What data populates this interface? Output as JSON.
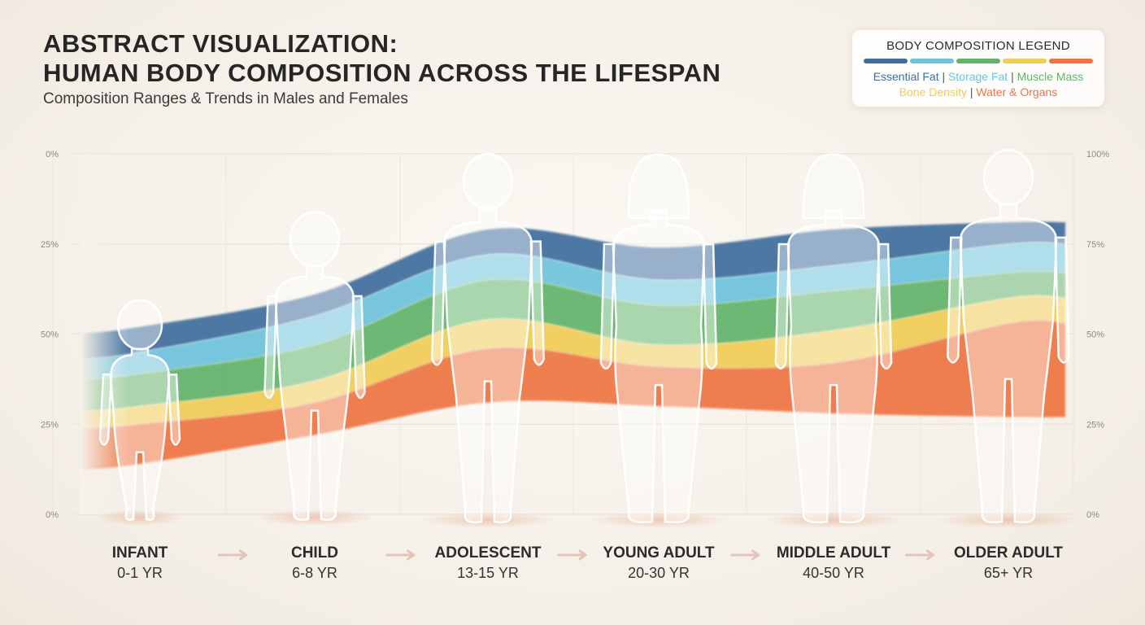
{
  "header": {
    "title_line1": "ABSTRACT VISUALIZATION:",
    "title_line2": "HUMAN BODY COMPOSITION ACROSS THE LIFESPAN",
    "subtitle": "Composition Ranges & Trends in Males and Females"
  },
  "legend": {
    "title": "BODY COMPOSITION LEGEND",
    "sep": "|",
    "items": [
      {
        "label": "Essential Fat",
        "color": "#3f6e9e"
      },
      {
        "label": "Storage Fat",
        "color": "#6ec3dc"
      },
      {
        "label": "Muscle Mass",
        "color": "#62b36a"
      },
      {
        "label": "Bone Density",
        "color": "#f1cc55"
      },
      {
        "label": "Water & Organs",
        "color": "#ee7443"
      }
    ]
  },
  "chart_data": {
    "type": "area",
    "title": "HUMAN BODY COMPOSITION ACROSS THE LIFESPAN",
    "left_axis_ticks": [
      "0%",
      "25%",
      "50%",
      "25%",
      "0%"
    ],
    "right_axis_ticks": [
      "100%",
      "75%",
      "50%",
      "25%",
      "0%"
    ],
    "categories": [
      {
        "name": "INFANT",
        "age": "0-1 YR",
        "figure": "infant"
      },
      {
        "name": "CHILD",
        "age": "6-8 YR",
        "figure": "child"
      },
      {
        "name": "ADOLESCENT",
        "age": "13-15 YR",
        "figure": "adolescent"
      },
      {
        "name": "YOUNG ADULT",
        "age": "20-30 YR",
        "figure": "female"
      },
      {
        "name": "MIDDLE ADULT",
        "age": "40-50 YR",
        "figure": "female"
      },
      {
        "name": "OLDER ADULT",
        "age": "65+ YR",
        "figure": "male"
      }
    ],
    "stack_order_top_to_bottom": [
      "Essential Fat",
      "Storage Fat",
      "Muscle Mass",
      "Bone Density",
      "Water & Organs"
    ],
    "band_boundaries_on_axis": [
      [
        52,
        45,
        39,
        30,
        25,
        14
      ],
      [
        61,
        55,
        47,
        37,
        31,
        22
      ],
      [
        79,
        72,
        65,
        54,
        46,
        31
      ],
      [
        74,
        65,
        58,
        47,
        41,
        30
      ],
      [
        79,
        69,
        62,
        51,
        42,
        28
      ],
      [
        81,
        75,
        67,
        60,
        53,
        27
      ]
    ]
  }
}
